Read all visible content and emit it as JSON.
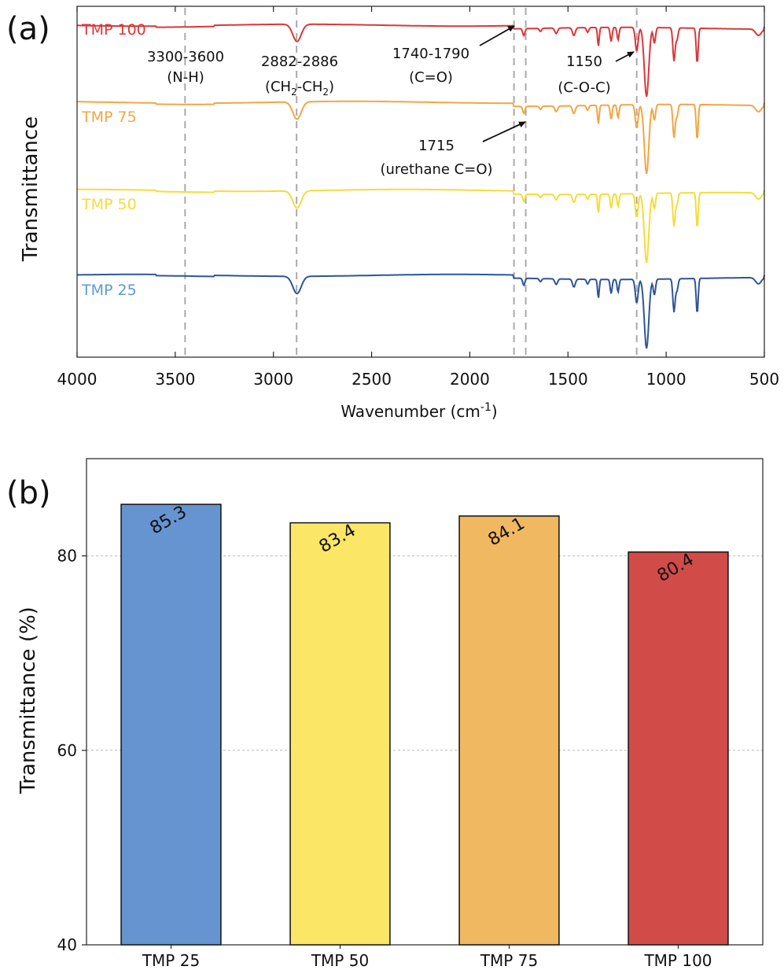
{
  "chart_data": [
    {
      "panel": "(a)",
      "type": "line",
      "xlabel_prefix": "Wavenumber (cm",
      "xlabel_sup": "-1",
      "xlabel_suffix": ")",
      "ylabel": "Transmittance",
      "xlim": [
        4000,
        500
      ],
      "xticks": [
        "4000",
        "3500",
        "3000",
        "2500",
        "2000",
        "1500",
        "1000",
        "500"
      ],
      "xtick_values": [
        4000,
        3500,
        3000,
        2500,
        2000,
        1500,
        1000,
        500
      ],
      "reference_lines": [
        3450,
        2882,
        1775,
        1715,
        1150
      ],
      "series": [
        {
          "name": "TMP 100",
          "color": "#d9383a",
          "label_color": "#d9383a"
        },
        {
          "name": "TMP 75",
          "color": "#f2a644",
          "label_color": "#f2a644"
        },
        {
          "name": "TMP 50",
          "color": "#f5dc3a",
          "label_color": "#f5dc3a"
        },
        {
          "name": "TMP 25",
          "color": "#2f5597",
          "label_color": "#5b9bd5"
        }
      ],
      "annotations": {
        "nh_range": "3300-3600",
        "nh_group": "(N-H)",
        "ch_range": "2882-2886",
        "ch_group_a": "(CH",
        "ch_group_sub1": "2",
        "ch_group_b": "-CH",
        "ch_group_sub2": "2",
        "ch_group_c": ")",
        "co_range": "1740-1790",
        "co_group": "(C=O)",
        "coc_range": "1150",
        "coc_group": "(C-O-C)",
        "urethane_value": "1715",
        "urethane_group": "(urethane C=O)"
      }
    },
    {
      "panel": "(b)",
      "type": "bar",
      "categories": [
        "TMP 25",
        "TMP 50",
        "TMP 75",
        "TMP 100"
      ],
      "values": [
        85.3,
        83.4,
        84.1,
        80.4
      ],
      "value_labels": [
        "85.3",
        "83.4",
        "84.1",
        "80.4"
      ],
      "colors": [
        "#6694d1",
        "#fbe765",
        "#f0b860",
        "#d14b49"
      ],
      "ylabel": "Transmittance (%)",
      "ylim": [
        40,
        90
      ],
      "yticks": [
        "40",
        "60",
        "80"
      ],
      "ytick_values": [
        40,
        60,
        80
      ],
      "grid": true
    }
  ]
}
